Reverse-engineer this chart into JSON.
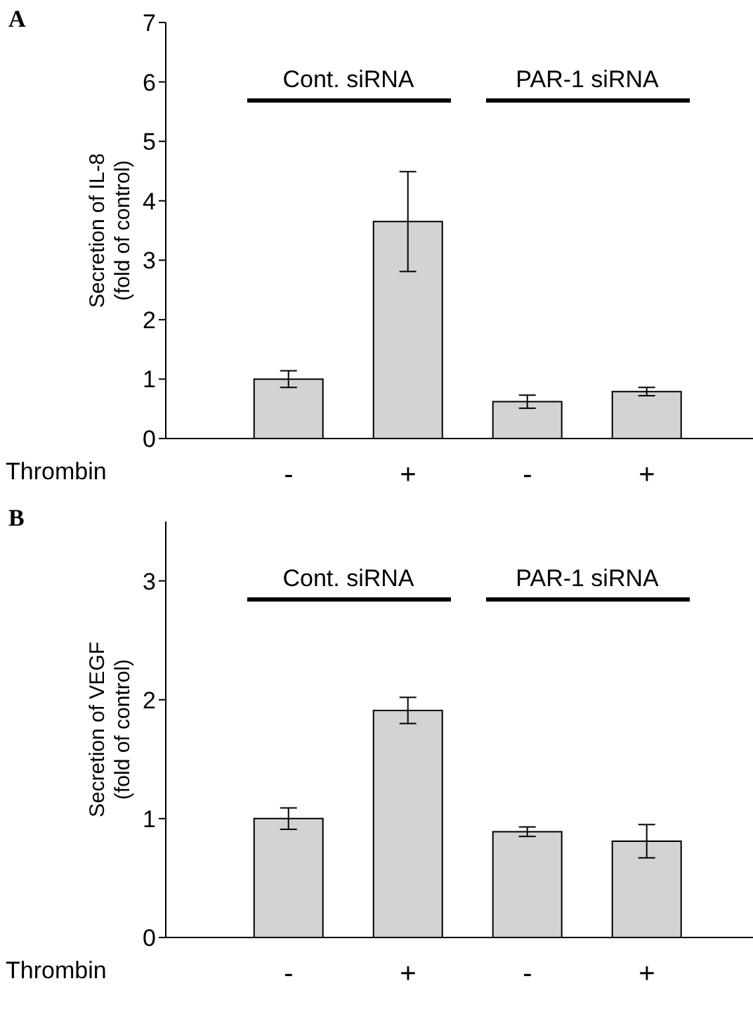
{
  "chart_data": [
    {
      "type": "bar",
      "title": "A",
      "ylabel": "Secretion of IL-8\n(fold of control)",
      "xlabel": "Thrombin",
      "categories": [
        "-",
        "+",
        "-",
        "+"
      ],
      "values": [
        1.0,
        3.65,
        0.62,
        0.79
      ],
      "errors": [
        0.14,
        0.84,
        0.11,
        0.07
      ],
      "color": "#d3d3d3",
      "ylim": [
        0,
        7
      ],
      "yticks": [
        0,
        1,
        2,
        3,
        4,
        5,
        6,
        7
      ],
      "annotations": [
        "Cont. siRNA",
        "PAR-1 siRNA"
      ]
    },
    {
      "type": "bar",
      "title": "B",
      "ylabel": "Secretion of VEGF\n(fold of control)",
      "xlabel": "Thrombin",
      "categories": [
        "-",
        "+",
        "-",
        "+"
      ],
      "values": [
        1.0,
        1.91,
        0.89,
        0.81
      ],
      "errors": [
        0.09,
        0.11,
        0.04,
        0.14
      ],
      "color": "#d3d3d3",
      "ylim": [
        0,
        3.5
      ],
      "yticks": [
        0,
        1,
        2,
        3
      ],
      "annotations": [
        "Cont. siRNA",
        "PAR-1 siRNA"
      ]
    }
  ]
}
